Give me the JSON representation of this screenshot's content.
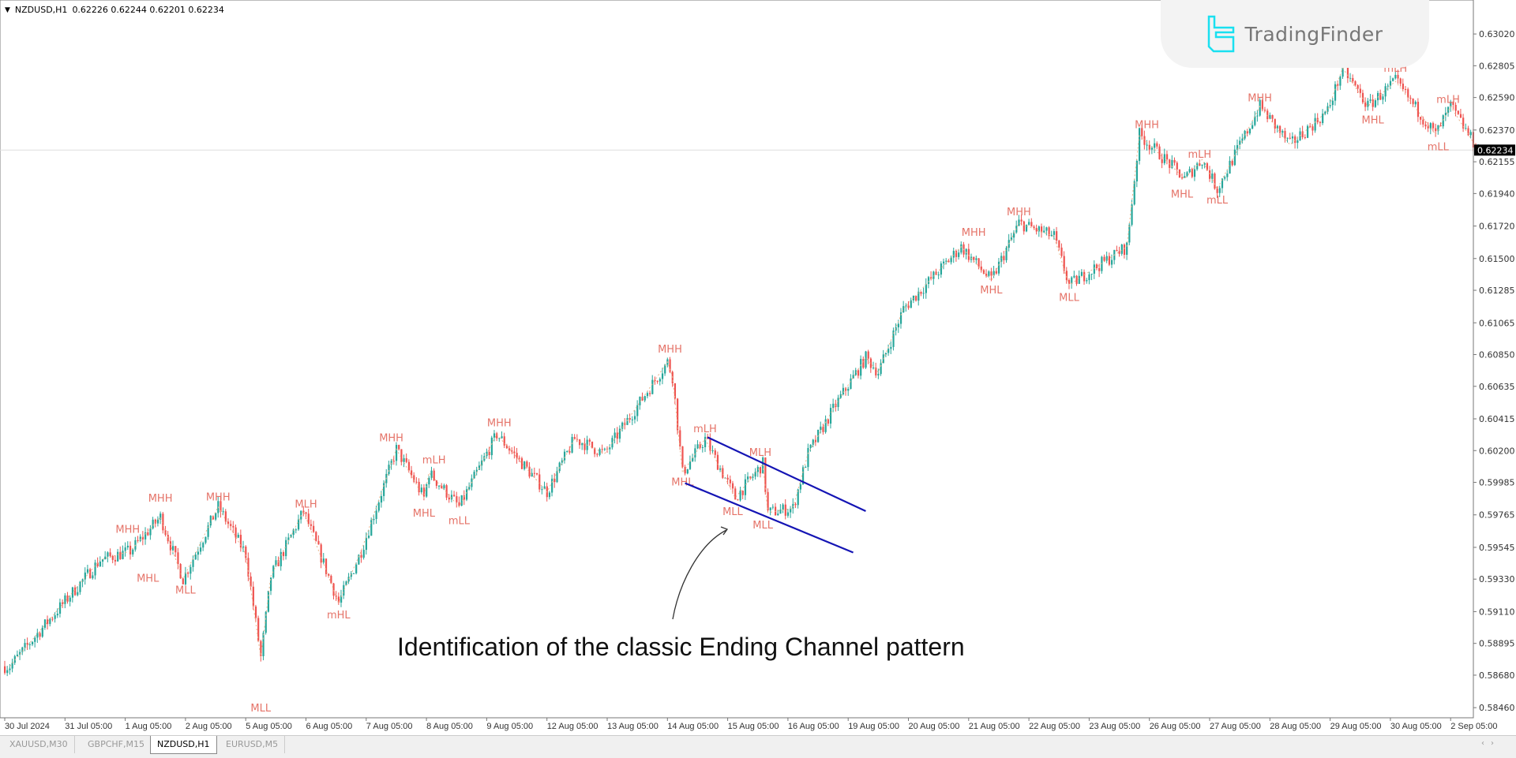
{
  "header": {
    "symbol": "NZDUSD,H1",
    "ohlc": "0.62226 0.62244 0.62201 0.62234"
  },
  "logo": {
    "text": "TradingFinder"
  },
  "annotation": {
    "text": "Identification of the classic Ending Channel pattern"
  },
  "tabs": [
    {
      "label": "XAUUSD,M30",
      "active": false
    },
    {
      "label": "GBPCHF,M15",
      "active": false
    },
    {
      "label": "NZDUSD,H1",
      "active": true
    },
    {
      "label": "EURUSD,M5",
      "active": false
    }
  ],
  "colors": {
    "bull": "#26a69a",
    "bear": "#ef5350",
    "label": "#e57368",
    "zigzag": "#e8b48a",
    "channel": "#1414b4",
    "current_price_bg": "#000000"
  },
  "chart_data": {
    "type": "candlestick",
    "title": "NZDUSD,H1",
    "x_unit": "hour bars",
    "ylim": [
      0.5839,
      0.6325
    ],
    "current_price": "0.62234",
    "y_ticks": [
      "0.63020",
      "0.62805",
      "0.62590",
      "0.62370",
      "0.62155",
      "0.61940",
      "0.61720",
      "0.61500",
      "0.61285",
      "0.61065",
      "0.60850",
      "0.60635",
      "0.60415",
      "0.60200",
      "0.59985",
      "0.59765",
      "0.59545",
      "0.59330",
      "0.59110",
      "0.58895",
      "0.58680",
      "0.58460"
    ],
    "x_ticks": [
      "30 Jul 2024",
      "31 Jul 05:00",
      "1 Aug 05:00",
      "2 Aug 05:00",
      "5 Aug 05:00",
      "6 Aug 05:00",
      "7 Aug 05:00",
      "8 Aug 05:00",
      "9 Aug 05:00",
      "12 Aug 05:00",
      "13 Aug 05:00",
      "14 Aug 05:00",
      "15 Aug 05:00",
      "16 Aug 05:00",
      "19 Aug 05:00",
      "20 Aug 05:00",
      "21 Aug 05:00",
      "22 Aug 05:00",
      "23 Aug 05:00",
      "26 Aug 05:00",
      "27 Aug 05:00",
      "28 Aug 05:00",
      "29 Aug 05:00",
      "30 Aug 05:00",
      "2 Sep 05:00"
    ],
    "price_path": [
      [
        2,
        0.5874
      ],
      [
        15,
        0.59
      ],
      [
        38,
        0.5946
      ],
      [
        50,
        0.5952
      ],
      [
        62,
        0.5975
      ],
      [
        71,
        0.5933
      ],
      [
        85,
        0.5982
      ],
      [
        96,
        0.595
      ],
      [
        102,
        0.588
      ],
      [
        106,
        0.5935
      ],
      [
        119,
        0.5979
      ],
      [
        133,
        0.5917
      ],
      [
        142,
        0.5952
      ],
      [
        156,
        0.6021
      ],
      [
        167,
        0.5988
      ],
      [
        169,
        0.6005
      ],
      [
        181,
        0.5982
      ],
      [
        196,
        0.6031
      ],
      [
        216,
        0.5992
      ],
      [
        227,
        0.6028
      ],
      [
        239,
        0.6018
      ],
      [
        264,
        0.608
      ],
      [
        266,
        0.607
      ],
      [
        270,
        0.6005
      ],
      [
        279,
        0.6028
      ],
      [
        291,
        0.5988
      ],
      [
        302,
        0.6011
      ],
      [
        304,
        0.5978
      ],
      [
        314,
        0.5981
      ],
      [
        320,
        0.6018
      ],
      [
        331,
        0.6051
      ],
      [
        343,
        0.6083
      ],
      [
        348,
        0.6073
      ],
      [
        358,
        0.6116
      ],
      [
        381,
        0.6158
      ],
      [
        393,
        0.6135
      ],
      [
        404,
        0.6174
      ],
      [
        418,
        0.6165
      ],
      [
        424,
        0.6132
      ],
      [
        447,
        0.6158
      ],
      [
        452,
        0.6234
      ],
      [
        470,
        0.6204
      ],
      [
        477,
        0.6217
      ],
      [
        483,
        0.6197
      ],
      [
        500,
        0.6253
      ],
      [
        512,
        0.6227
      ],
      [
        527,
        0.625
      ],
      [
        533,
        0.6279
      ],
      [
        543,
        0.6253
      ],
      [
        554,
        0.627
      ],
      [
        570,
        0.6234
      ],
      [
        576,
        0.6253
      ],
      [
        587,
        0.62234
      ]
    ],
    "swing_labels": [
      {
        "text": "MHH",
        "bar": 49,
        "price": 0.5967
      },
      {
        "text": "MHL",
        "bar": 57,
        "price": 0.5934
      },
      {
        "text": "MHH",
        "bar": 62,
        "price": 0.5988
      },
      {
        "text": "MLL",
        "bar": 72,
        "price": 0.5926
      },
      {
        "text": "MHH",
        "bar": 85,
        "price": 0.5989
      },
      {
        "text": "MLL",
        "bar": 102,
        "price": 0.5846
      },
      {
        "text": "MLH",
        "bar": 120,
        "price": 0.5984
      },
      {
        "text": "mHL",
        "bar": 133,
        "price": 0.5909
      },
      {
        "text": "MHH",
        "bar": 154,
        "price": 0.6029
      },
      {
        "text": "MHL",
        "bar": 167,
        "price": 0.5978
      },
      {
        "text": "mLH",
        "bar": 171,
        "price": 0.6014
      },
      {
        "text": "mLL",
        "bar": 181,
        "price": 0.5973
      },
      {
        "text": "MHH",
        "bar": 197,
        "price": 0.6039
      },
      {
        "text": "MHH",
        "bar": 265,
        "price": 0.6089
      },
      {
        "text": "mLH",
        "bar": 279,
        "price": 0.6035
      },
      {
        "text": "MHL",
        "bar": 270,
        "price": 0.5999
      },
      {
        "text": "MLH",
        "bar": 301,
        "price": 0.6019
      },
      {
        "text": "MLL",
        "bar": 290,
        "price": 0.5979
      },
      {
        "text": "MLL",
        "bar": 302,
        "price": 0.597
      },
      {
        "text": "MHH",
        "bar": 386,
        "price": 0.6168
      },
      {
        "text": "MHL",
        "bar": 393,
        "price": 0.6129
      },
      {
        "text": "MHH",
        "bar": 404,
        "price": 0.6182
      },
      {
        "text": "MLL",
        "bar": 424,
        "price": 0.6124
      },
      {
        "text": "MHH",
        "bar": 455,
        "price": 0.6241
      },
      {
        "text": "MHL",
        "bar": 469,
        "price": 0.6194
      },
      {
        "text": "mLH",
        "bar": 476,
        "price": 0.6221
      },
      {
        "text": "mLL",
        "bar": 483,
        "price": 0.619
      },
      {
        "text": "MHH",
        "bar": 500,
        "price": 0.6259
      },
      {
        "text": "mLH",
        "bar": 554,
        "price": 0.6279
      },
      {
        "text": "MHL",
        "bar": 545,
        "price": 0.6244
      },
      {
        "text": "mLH",
        "bar": 575,
        "price": 0.6258
      },
      {
        "text": "mLL",
        "bar": 571,
        "price": 0.6226
      }
    ],
    "channel": {
      "upper": [
        [
          280,
          0.6029
        ],
        [
          343,
          0.5979
        ]
      ],
      "lower": [
        [
          271,
          0.5998
        ],
        [
          338,
          0.5951
        ]
      ]
    }
  }
}
